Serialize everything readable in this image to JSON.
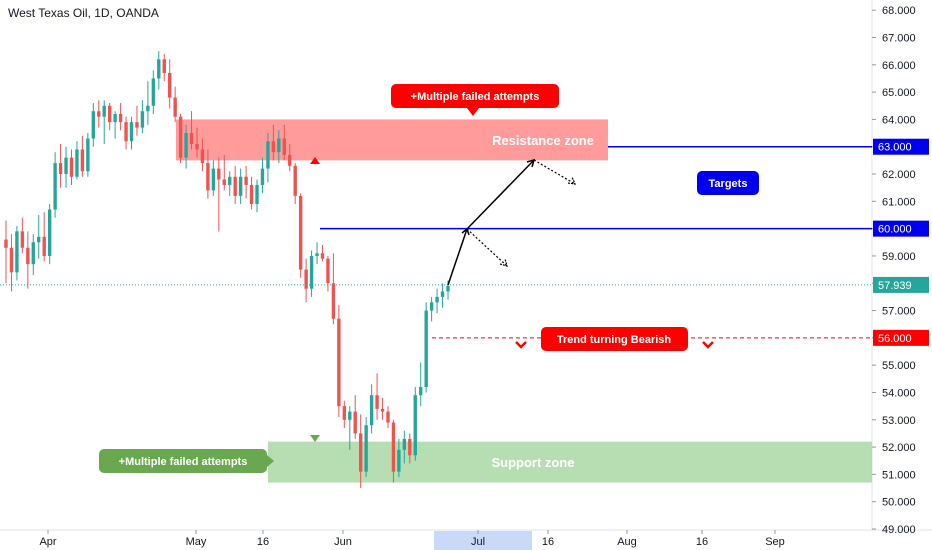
{
  "header": {
    "title": "West Texas Oil, 1D, OANDA"
  },
  "chart_data": {
    "type": "candlestick",
    "ylim": [
      49.0,
      68.3
    ],
    "y_ticks": [
      "49.000",
      "50.000",
      "51.000",
      "52.000",
      "53.000",
      "54.000",
      "55.000",
      "56.000",
      "57.000",
      "58.000",
      "59.000",
      "60.000",
      "61.000",
      "62.000",
      "63.000",
      "64.000",
      "65.000",
      "66.000",
      "67.000",
      "68.000"
    ],
    "x_labels": [
      "Apr",
      "May",
      "16",
      "Jun",
      "Jul",
      "16",
      "Aug",
      "16",
      "Sep"
    ],
    "highlighted_x_label": "Jul",
    "candles": [
      {
        "o": 59.6,
        "h": 60.3,
        "l": 58.0,
        "c": 59.3
      },
      {
        "o": 59.3,
        "h": 59.8,
        "l": 57.7,
        "c": 58.4
      },
      {
        "o": 58.4,
        "h": 60.1,
        "l": 58.1,
        "c": 59.9
      },
      {
        "o": 59.9,
        "h": 60.4,
        "l": 59.1,
        "c": 59.3
      },
      {
        "o": 59.3,
        "h": 59.9,
        "l": 57.8,
        "c": 58.7
      },
      {
        "o": 58.7,
        "h": 59.8,
        "l": 58.3,
        "c": 59.5
      },
      {
        "o": 59.5,
        "h": 60.5,
        "l": 58.9,
        "c": 59.7
      },
      {
        "o": 59.7,
        "h": 60.6,
        "l": 58.8,
        "c": 59.0
      },
      {
        "o": 59.0,
        "h": 60.9,
        "l": 58.7,
        "c": 60.7
      },
      {
        "o": 60.7,
        "h": 62.8,
        "l": 60.4,
        "c": 62.4
      },
      {
        "o": 62.4,
        "h": 63.1,
        "l": 61.5,
        "c": 62.0
      },
      {
        "o": 62.0,
        "h": 63.0,
        "l": 61.5,
        "c": 62.6
      },
      {
        "o": 62.6,
        "h": 62.9,
        "l": 61.6,
        "c": 61.9
      },
      {
        "o": 61.9,
        "h": 63.2,
        "l": 61.8,
        "c": 62.9
      },
      {
        "o": 62.9,
        "h": 63.4,
        "l": 61.9,
        "c": 62.1
      },
      {
        "o": 62.1,
        "h": 63.5,
        "l": 61.9,
        "c": 63.3
      },
      {
        "o": 63.3,
        "h": 64.6,
        "l": 63.0,
        "c": 64.3
      },
      {
        "o": 64.3,
        "h": 64.7,
        "l": 63.7,
        "c": 64.1
      },
      {
        "o": 64.1,
        "h": 64.7,
        "l": 63.1,
        "c": 64.5
      },
      {
        "o": 64.5,
        "h": 64.6,
        "l": 63.6,
        "c": 63.9
      },
      {
        "o": 63.9,
        "h": 64.3,
        "l": 63.3,
        "c": 64.2
      },
      {
        "o": 64.2,
        "h": 64.6,
        "l": 63.6,
        "c": 63.9
      },
      {
        "o": 63.9,
        "h": 64.1,
        "l": 62.9,
        "c": 63.2
      },
      {
        "o": 63.2,
        "h": 64.1,
        "l": 62.9,
        "c": 63.9
      },
      {
        "o": 63.9,
        "h": 64.5,
        "l": 63.4,
        "c": 63.7
      },
      {
        "o": 63.7,
        "h": 64.7,
        "l": 63.5,
        "c": 64.3
      },
      {
        "o": 64.3,
        "h": 65.4,
        "l": 63.8,
        "c": 64.5
      },
      {
        "o": 64.5,
        "h": 65.8,
        "l": 64.2,
        "c": 65.5
      },
      {
        "o": 65.5,
        "h": 66.5,
        "l": 65.1,
        "c": 66.2
      },
      {
        "o": 66.2,
        "h": 66.4,
        "l": 65.4,
        "c": 65.7
      },
      {
        "o": 65.7,
        "h": 66.2,
        "l": 64.4,
        "c": 64.8
      },
      {
        "o": 64.8,
        "h": 65.2,
        "l": 63.9,
        "c": 64.1
      },
      {
        "o": 64.1,
        "h": 64.2,
        "l": 62.4,
        "c": 62.6
      },
      {
        "o": 62.6,
        "h": 63.8,
        "l": 62.2,
        "c": 63.5
      },
      {
        "o": 63.5,
        "h": 64.3,
        "l": 62.9,
        "c": 63.1
      },
      {
        "o": 63.1,
        "h": 63.7,
        "l": 62.6,
        "c": 62.9
      },
      {
        "o": 62.9,
        "h": 63.3,
        "l": 62.1,
        "c": 62.4
      },
      {
        "o": 62.4,
        "h": 62.9,
        "l": 61.1,
        "c": 61.4
      },
      {
        "o": 61.4,
        "h": 62.5,
        "l": 61.2,
        "c": 62.2
      },
      {
        "o": 62.2,
        "h": 62.6,
        "l": 59.9,
        "c": 61.8
      },
      {
        "o": 61.8,
        "h": 62.7,
        "l": 61.4,
        "c": 61.6
      },
      {
        "o": 61.6,
        "h": 62.1,
        "l": 61.2,
        "c": 61.9
      },
      {
        "o": 61.9,
        "h": 62.3,
        "l": 60.9,
        "c": 61.2
      },
      {
        "o": 61.2,
        "h": 62.2,
        "l": 60.9,
        "c": 61.9
      },
      {
        "o": 61.9,
        "h": 62.3,
        "l": 61.1,
        "c": 61.6
      },
      {
        "o": 61.6,
        "h": 61.9,
        "l": 60.7,
        "c": 60.9
      },
      {
        "o": 60.9,
        "h": 61.8,
        "l": 60.6,
        "c": 61.6
      },
      {
        "o": 61.6,
        "h": 62.6,
        "l": 61.3,
        "c": 62.2
      },
      {
        "o": 62.2,
        "h": 63.5,
        "l": 61.7,
        "c": 63.2
      },
      {
        "o": 63.2,
        "h": 63.8,
        "l": 62.5,
        "c": 62.8
      },
      {
        "o": 62.8,
        "h": 63.6,
        "l": 62.4,
        "c": 63.3
      },
      {
        "o": 63.3,
        "h": 63.8,
        "l": 62.5,
        "c": 62.7
      },
      {
        "o": 62.7,
        "h": 63.1,
        "l": 62.1,
        "c": 62.3
      },
      {
        "o": 62.3,
        "h": 62.4,
        "l": 60.9,
        "c": 61.2
      },
      {
        "o": 61.2,
        "h": 61.3,
        "l": 58.2,
        "c": 58.5
      },
      {
        "o": 58.5,
        "h": 58.9,
        "l": 57.3,
        "c": 57.8
      },
      {
        "o": 57.8,
        "h": 59.2,
        "l": 57.5,
        "c": 59.0
      },
      {
        "o": 59.0,
        "h": 59.5,
        "l": 58.7,
        "c": 59.1
      },
      {
        "o": 59.1,
        "h": 59.4,
        "l": 58.8,
        "c": 58.9
      },
      {
        "o": 58.9,
        "h": 59.0,
        "l": 57.7,
        "c": 58.0
      },
      {
        "o": 58.0,
        "h": 59.1,
        "l": 56.5,
        "c": 56.7
      },
      {
        "o": 56.7,
        "h": 57.2,
        "l": 53.1,
        "c": 53.5
      },
      {
        "o": 53.5,
        "h": 53.7,
        "l": 52.7,
        "c": 53.0
      },
      {
        "o": 53.0,
        "h": 53.5,
        "l": 51.9,
        "c": 53.3
      },
      {
        "o": 53.3,
        "h": 53.9,
        "l": 52.3,
        "c": 52.5
      },
      {
        "o": 52.5,
        "h": 53.2,
        "l": 50.5,
        "c": 51.1
      },
      {
        "o": 51.1,
        "h": 53.1,
        "l": 50.9,
        "c": 52.8
      },
      {
        "o": 52.8,
        "h": 54.3,
        "l": 52.5,
        "c": 53.9
      },
      {
        "o": 53.9,
        "h": 54.7,
        "l": 53.0,
        "c": 53.4
      },
      {
        "o": 53.4,
        "h": 53.8,
        "l": 53.0,
        "c": 53.3
      },
      {
        "o": 53.3,
        "h": 53.5,
        "l": 52.7,
        "c": 52.9
      },
      {
        "o": 52.9,
        "h": 53.0,
        "l": 50.7,
        "c": 51.1
      },
      {
        "o": 51.1,
        "h": 52.3,
        "l": 50.9,
        "c": 51.9
      },
      {
        "o": 51.9,
        "h": 52.6,
        "l": 51.4,
        "c": 52.3
      },
      {
        "o": 52.3,
        "h": 52.5,
        "l": 51.4,
        "c": 51.7
      },
      {
        "o": 51.7,
        "h": 54.2,
        "l": 51.5,
        "c": 53.9
      },
      {
        "o": 53.9,
        "h": 55.1,
        "l": 53.5,
        "c": 54.2
      },
      {
        "o": 54.2,
        "h": 57.3,
        "l": 54.0,
        "c": 57.0
      },
      {
        "o": 57.0,
        "h": 57.5,
        "l": 56.6,
        "c": 57.3
      },
      {
        "o": 57.3,
        "h": 57.8,
        "l": 56.9,
        "c": 57.5
      },
      {
        "o": 57.5,
        "h": 58.0,
        "l": 57.1,
        "c": 57.7
      },
      {
        "o": 57.7,
        "h": 58.1,
        "l": 57.4,
        "c": 57.9
      }
    ],
    "last_price": "57.939",
    "levels": {
      "resistance_zone": {
        "low": 62.5,
        "high": 64.0,
        "label": "Resistance zone"
      },
      "support_zone": {
        "low": 50.7,
        "high": 52.2,
        "label": "Support zone"
      },
      "target_1": {
        "value": 60.0,
        "label": "60.000"
      },
      "target_2": {
        "value": 63.0,
        "label": "63.000"
      },
      "bearish_line": {
        "value": 56.0,
        "label": "56.000"
      }
    },
    "annotations": {
      "resistance_callout": "+Multiple failed attempts",
      "support_callout": "+Multiple failed attempts",
      "targets_callout": "Targets",
      "bearish_callout": "Trend turning Bearish"
    },
    "colors": {
      "bull": "#26a69a",
      "bear": "#ef5350",
      "resistance_fill": "#ff8a8a",
      "support_fill": "#a5d6a0",
      "target_line": "#0000ee",
      "bearish_line": "#ff0000",
      "last_price_line": "#26a69a",
      "callout_red": "#ff0000",
      "callout_green": "#6aa84f",
      "callout_blue": "#0000ee",
      "jul_highlight": "#c9daf8"
    }
  }
}
